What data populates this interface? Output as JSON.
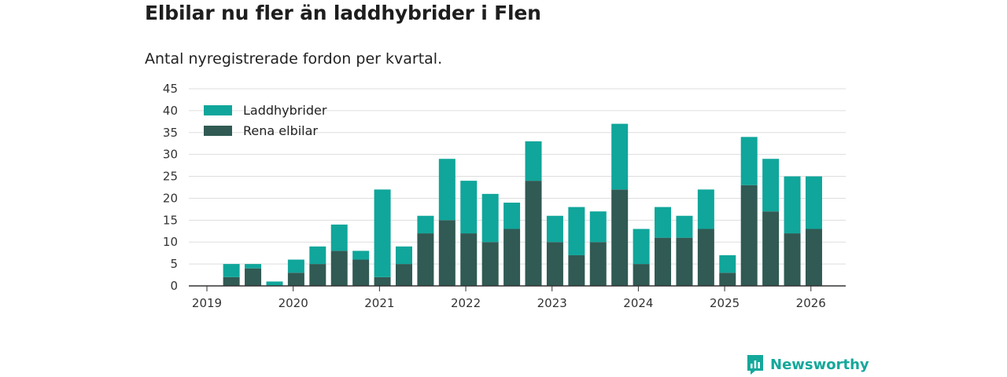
{
  "title": "Elbilar nu fler än laddhybrider i Flen",
  "subtitle": "Antal nyregistrerade fordon per kvartal.",
  "brand": {
    "name": "Newsworthy",
    "icon": "bar-chart-badge-icon"
  },
  "colors": {
    "laddhybrider": "#10a69b",
    "elbilar": "#305a53",
    "grid": "#dddddd",
    "axis": "#333333",
    "brand": "#14a89b"
  },
  "chart_data": {
    "type": "bar",
    "stacked": true,
    "title": "Elbilar nu fler än laddhybrider i Flen",
    "subtitle": "Antal nyregistrerade fordon per kvartal.",
    "xlabel": "",
    "ylabel": "",
    "ylim": [
      0,
      45
    ],
    "yticks": [
      0,
      5,
      10,
      15,
      20,
      25,
      30,
      35,
      40,
      45
    ],
    "xticks": [
      "2019",
      "2020",
      "2021",
      "2022",
      "2023",
      "2024",
      "2025",
      "2026"
    ],
    "legend_position": "top-left",
    "categories": [
      "2019 Q1",
      "2019 Q2",
      "2019 Q3",
      "2019 Q4",
      "2020 Q1",
      "2020 Q2",
      "2020 Q3",
      "2020 Q4",
      "2021 Q1",
      "2021 Q2",
      "2021 Q3",
      "2021 Q4",
      "2022 Q1",
      "2022 Q2",
      "2022 Q3",
      "2022 Q4",
      "2023 Q1",
      "2023 Q2",
      "2023 Q3",
      "2023 Q4",
      "2024 Q1",
      "2024 Q2",
      "2024 Q3",
      "2024 Q4",
      "2025 Q1",
      "2025 Q2",
      "2025 Q3",
      "2025 Q4",
      "2026 Q1"
    ],
    "series": [
      {
        "name": "Rena elbilar",
        "values": [
          0,
          2,
          4,
          0,
          3,
          5,
          8,
          6,
          2,
          5,
          12,
          15,
          12,
          10,
          13,
          24,
          10,
          7,
          10,
          22,
          5,
          11,
          11,
          13,
          3,
          23,
          17,
          12,
          13
        ]
      },
      {
        "name": "Laddhybrider",
        "values": [
          0,
          3,
          1,
          1,
          3,
          4,
          6,
          2,
          20,
          4,
          4,
          14,
          12,
          11,
          6,
          9,
          6,
          11,
          7,
          15,
          8,
          7,
          5,
          9,
          4,
          11,
          12,
          13,
          12
        ]
      }
    ],
    "legend": [
      "Laddhybrider",
      "Rena elbilar"
    ]
  }
}
